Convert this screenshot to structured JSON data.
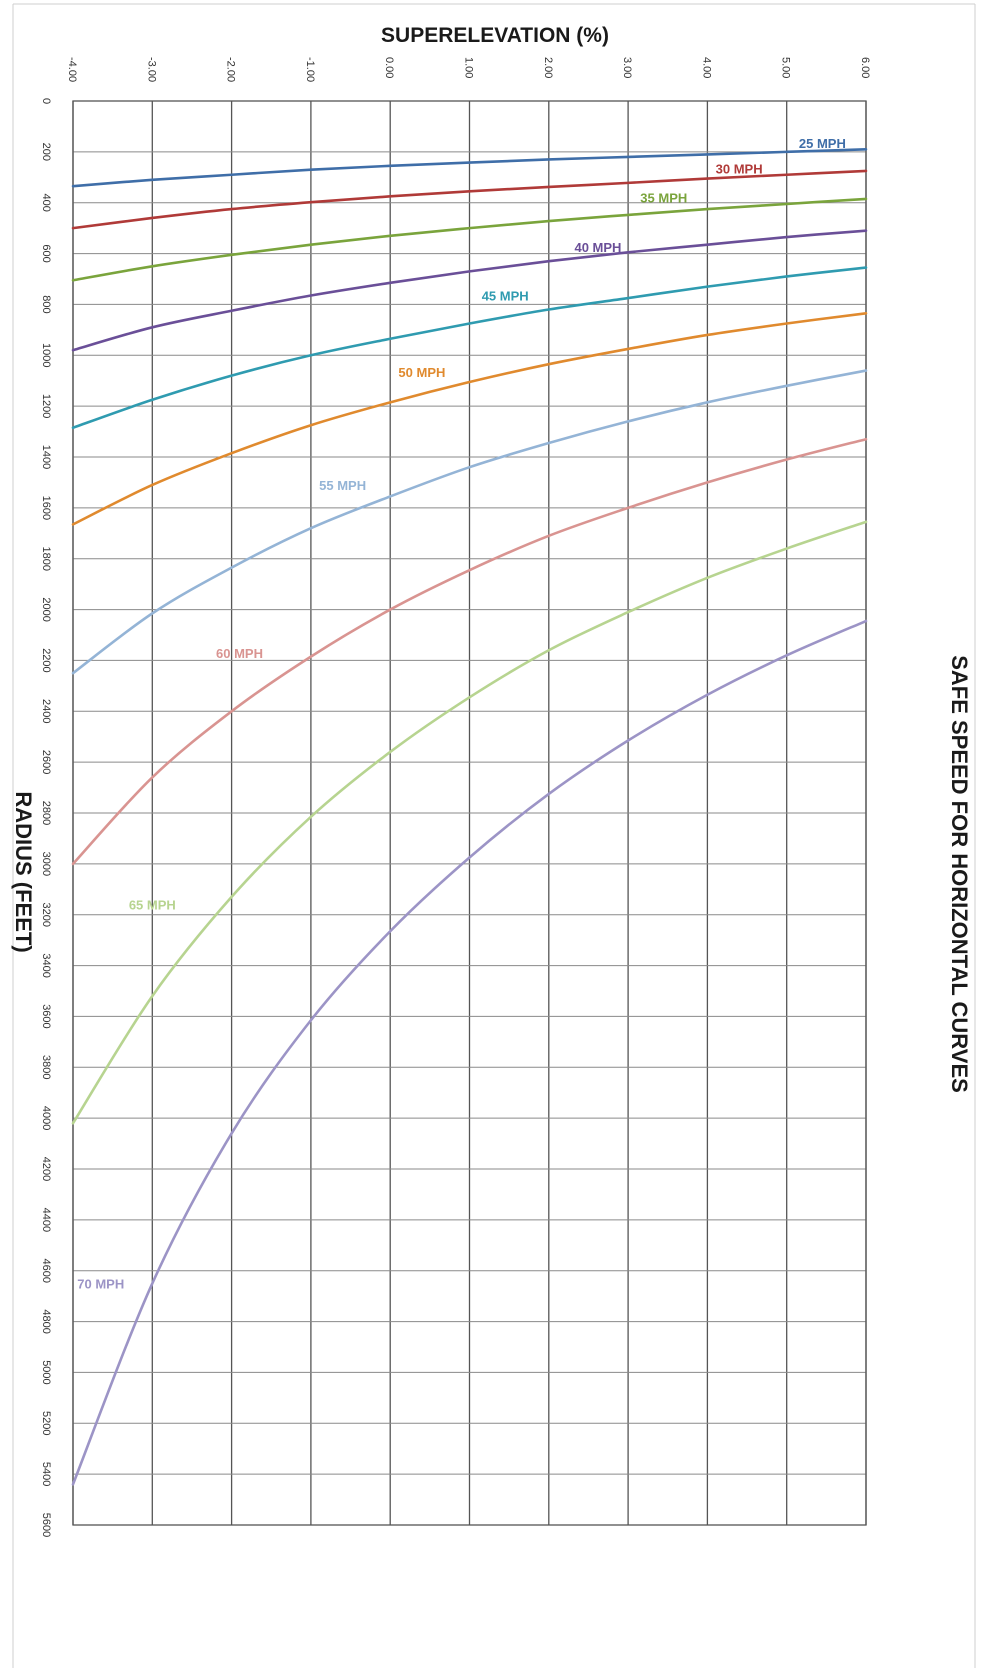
{
  "chart_data": {
    "type": "line",
    "title": "SAFE SPEED FOR HORIZONTAL CURVES",
    "xlabel": "SUPERELEVATION (%)",
    "ylabel": "RADIUS (FEET)",
    "xlim": [
      -4.0,
      6.0
    ],
    "ylim": [
      0,
      5600
    ],
    "x_ticks": [
      "-4.00",
      "-3.00",
      "-2.00",
      "-1.00",
      "0.00",
      "1.00",
      "2.00",
      "3.00",
      "4.00",
      "5.00",
      "6.00"
    ],
    "y_ticks": [
      "0",
      "200",
      "400",
      "600",
      "800",
      "1000",
      "1200",
      "1400",
      "1600",
      "1800",
      "2000",
      "2200",
      "2400",
      "2600",
      "2800",
      "3000",
      "3200",
      "3400",
      "3600",
      "3800",
      "4000",
      "4200",
      "4400",
      "4600",
      "4800",
      "5000",
      "5200",
      "5400",
      "5600"
    ],
    "grid": true,
    "x": [
      -4,
      -3,
      -2,
      -1,
      0,
      1,
      2,
      3,
      4,
      5,
      6
    ],
    "series": [
      {
        "name": "25 MPH",
        "color": "#3f6ea8",
        "label_at": [
          5.45,
          165
        ],
        "values": [
          335,
          310,
          290,
          270,
          255,
          242,
          230,
          220,
          210,
          200,
          190
        ]
      },
      {
        "name": "30 MPH",
        "color": "#b03a38",
        "label_at": [
          4.4,
          265
        ],
        "values": [
          500,
          460,
          425,
          398,
          375,
          355,
          338,
          322,
          305,
          290,
          275
        ]
      },
      {
        "name": "35 MPH",
        "color": "#7aa43c",
        "label_at": [
          3.45,
          380
        ],
        "values": [
          705,
          650,
          605,
          565,
          530,
          500,
          472,
          448,
          425,
          405,
          385
        ]
      },
      {
        "name": "40 MPH",
        "color": "#6a4f98",
        "label_at": [
          2.62,
          575
        ],
        "values": [
          980,
          890,
          825,
          765,
          715,
          670,
          630,
          595,
          565,
          535,
          510
        ]
      },
      {
        "name": "45 MPH",
        "color": "#2f9bb0",
        "label_at": [
          1.45,
          765
        ],
        "values": [
          1285,
          1175,
          1080,
          1000,
          935,
          875,
          820,
          775,
          730,
          690,
          655
        ]
      },
      {
        "name": "50 MPH",
        "color": "#e08a2e",
        "label_at": [
          0.4,
          1065
        ],
        "values": [
          1665,
          1510,
          1385,
          1275,
          1185,
          1105,
          1035,
          975,
          920,
          875,
          835
        ]
      },
      {
        "name": "55 MPH",
        "color": "#94b4d6",
        "label_at": [
          -0.6,
          1510
        ],
        "values": [
          2250,
          2015,
          1835,
          1680,
          1555,
          1440,
          1345,
          1260,
          1185,
          1120,
          1060
        ]
      },
      {
        "name": "60 MPH",
        "color": "#d99491",
        "label_at": [
          -1.9,
          2170
        ],
        "values": [
          3000,
          2660,
          2400,
          2185,
          2000,
          1845,
          1710,
          1600,
          1500,
          1410,
          1330
        ]
      },
      {
        "name": "65 MPH",
        "color": "#b7d490",
        "label_at": [
          -3.0,
          3160
        ],
        "values": [
          4020,
          3520,
          3130,
          2815,
          2560,
          2345,
          2160,
          2010,
          1875,
          1760,
          1655
        ]
      },
      {
        "name": "70 MPH",
        "color": "#9c94c6",
        "label_at": [
          -3.65,
          4650
        ],
        "values": [
          5440,
          4650,
          4060,
          3615,
          3265,
          2975,
          2725,
          2515,
          2335,
          2180,
          2045
        ]
      }
    ]
  }
}
